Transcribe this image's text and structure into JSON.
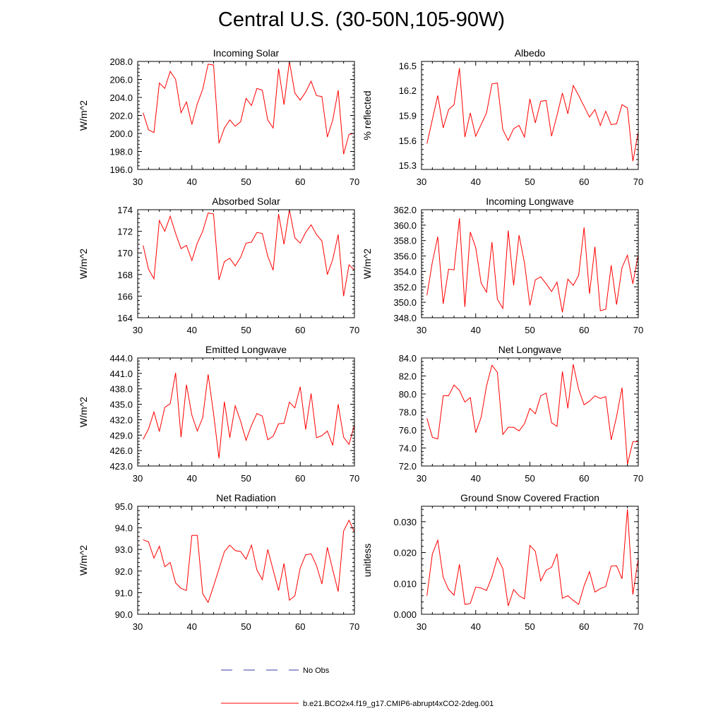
{
  "title": "Central U.S. (30-50N,105-90W)",
  "legend": {
    "items": [
      {
        "label": "No Obs",
        "color": "#3a3aa8",
        "dash": "dashed"
      },
      {
        "label": "b.e21.BCO2x4.f19_g17.CMIP6-abrupt4xCO2-2deg.001",
        "color": "#ff0000",
        "dash": "solid"
      }
    ]
  },
  "chart_data": [
    {
      "type": "line",
      "title": "Incoming Solar",
      "ylabel": "W/m^2",
      "xlim": [
        30,
        70
      ],
      "ylim": [
        196,
        208
      ],
      "xticks": [
        30,
        40,
        50,
        60,
        70
      ],
      "xtick_labels": [
        "30",
        "40",
        "50",
        "60",
        "70"
      ],
      "yticks": [
        196,
        198,
        200,
        202,
        204,
        206,
        208
      ],
      "ytick_labels": [
        "196.0",
        "198.0",
        "200.0",
        "202.0",
        "204.0",
        "206.0",
        "208.0"
      ],
      "series": [
        {
          "color": "#ff0000",
          "x": [
            31,
            32,
            33,
            34,
            35,
            36,
            37,
            38,
            39,
            40,
            41,
            42,
            43,
            44,
            45,
            46,
            47,
            48,
            49,
            50,
            51,
            52,
            53,
            54,
            55,
            56,
            57,
            58,
            59,
            60,
            61,
            62,
            63,
            64,
            65,
            66,
            67,
            68,
            69,
            70,
            71
          ],
          "y": [
            202.3,
            200.4,
            200.1,
            205.6,
            205.0,
            206.9,
            206.0,
            202.3,
            203.5,
            201.0,
            203.3,
            204.9,
            207.7,
            207.6,
            198.9,
            200.6,
            201.5,
            200.8,
            201.3,
            203.9,
            203.1,
            205.0,
            204.8,
            201.5,
            200.6,
            207.2,
            203.2,
            208.0,
            204.5,
            203.7,
            204.6,
            205.8,
            204.2,
            204.1,
            199.6,
            201.5,
            204.8,
            197.7,
            199.9,
            200.0,
            200.0
          ]
        }
      ]
    },
    {
      "type": "line",
      "title": "Albedo",
      "ylabel": "% reflected",
      "xlim": [
        30,
        70
      ],
      "ylim": [
        15.25,
        16.55
      ],
      "xticks": [
        30,
        40,
        50,
        60,
        70
      ],
      "xtick_labels": [
        "30",
        "40",
        "50",
        "60",
        "70"
      ],
      "yticks": [
        15.3,
        15.6,
        15.9,
        16.2,
        16.5
      ],
      "ytick_labels": [
        "15.3",
        "15.6",
        "15.9",
        "16.2",
        "16.5"
      ],
      "series": [
        {
          "color": "#ff0000",
          "x": [
            31,
            32,
            33,
            34,
            35,
            36,
            37,
            38,
            39,
            40,
            41,
            42,
            43,
            44,
            45,
            46,
            47,
            48,
            49,
            50,
            51,
            52,
            53,
            54,
            55,
            56,
            57,
            58,
            59,
            60,
            61,
            62,
            63,
            64,
            65,
            66,
            67,
            68,
            69,
            70,
            71
          ],
          "y": [
            15.56,
            15.85,
            16.14,
            15.75,
            15.97,
            16.03,
            16.47,
            15.64,
            15.93,
            15.65,
            15.79,
            15.93,
            16.28,
            16.29,
            15.73,
            15.6,
            15.74,
            15.78,
            15.64,
            16.1,
            15.81,
            16.07,
            16.08,
            15.65,
            15.9,
            16.17,
            15.92,
            16.26,
            16.14,
            16.01,
            15.88,
            15.97,
            15.78,
            15.95,
            15.79,
            15.8,
            16.03,
            15.99,
            15.35,
            15.7,
            15.6
          ]
        }
      ]
    },
    {
      "type": "line",
      "title": "Absorbed Solar",
      "ylabel": "W/m^2",
      "xlim": [
        30,
        70
      ],
      "ylim": [
        164,
        174
      ],
      "xticks": [
        30,
        40,
        50,
        60,
        70
      ],
      "xtick_labels": [
        "30",
        "40",
        "50",
        "60",
        "70"
      ],
      "yticks": [
        164,
        166,
        168,
        170,
        172,
        174
      ],
      "ytick_labels": [
        "164",
        "166",
        "168",
        "170",
        "172",
        "174"
      ],
      "series": [
        {
          "color": "#ff0000",
          "x": [
            31,
            32,
            33,
            34,
            35,
            36,
            37,
            38,
            39,
            40,
            41,
            42,
            43,
            44,
            45,
            46,
            47,
            48,
            49,
            50,
            51,
            52,
            53,
            54,
            55,
            56,
            57,
            58,
            59,
            60,
            61,
            62,
            63,
            64,
            65,
            66,
            67,
            68,
            69,
            70,
            71
          ],
          "y": [
            170.7,
            168.5,
            167.6,
            173.0,
            172.0,
            173.4,
            171.8,
            170.4,
            170.7,
            169.3,
            170.9,
            172.0,
            173.7,
            173.6,
            167.5,
            169.2,
            169.5,
            168.8,
            169.6,
            170.9,
            171.0,
            171.9,
            171.8,
            169.7,
            168.4,
            173.6,
            170.8,
            174.0,
            171.4,
            170.9,
            171.9,
            172.6,
            171.7,
            171.1,
            168.0,
            169.4,
            171.7,
            166.0,
            168.9,
            168.4,
            168.5
          ]
        }
      ]
    },
    {
      "type": "line",
      "title": "Incoming Longwave",
      "ylabel": "W/m^2",
      "xlim": [
        30,
        70
      ],
      "ylim": [
        348,
        362
      ],
      "xticks": [
        30,
        40,
        50,
        60,
        70
      ],
      "xtick_labels": [
        "30",
        "40",
        "50",
        "60",
        "70"
      ],
      "yticks": [
        348,
        350,
        352,
        354,
        356,
        358,
        360,
        362
      ],
      "ytick_labels": [
        "348.0",
        "350.0",
        "352.0",
        "354.0",
        "356.0",
        "358.0",
        "360.0",
        "362.0"
      ],
      "series": [
        {
          "color": "#ff0000",
          "x": [
            31,
            32,
            33,
            34,
            35,
            36,
            37,
            38,
            39,
            40,
            41,
            42,
            43,
            44,
            45,
            46,
            47,
            48,
            49,
            50,
            51,
            52,
            53,
            54,
            55,
            56,
            57,
            58,
            59,
            60,
            61,
            62,
            63,
            64,
            65,
            66,
            67,
            68,
            69,
            70,
            71
          ],
          "y": [
            350.9,
            355.2,
            358.5,
            349.8,
            354.3,
            354.2,
            360.9,
            349.4,
            359.1,
            357.1,
            352.5,
            351.3,
            357.8,
            350.4,
            349.2,
            359.3,
            352.2,
            358.7,
            355.1,
            349.6,
            352.9,
            353.3,
            352.4,
            351.4,
            352.6,
            348.7,
            353.0,
            352.2,
            353.5,
            359.7,
            351.1,
            357.2,
            348.9,
            349.1,
            354.8,
            349.7,
            354.5,
            356.1,
            352.4,
            356.2,
            356.0
          ]
        }
      ]
    },
    {
      "type": "line",
      "title": "Emitted Longwave",
      "ylabel": "W/m^2",
      "xlim": [
        30,
        70
      ],
      "ylim": [
        423,
        444
      ],
      "xticks": [
        30,
        40,
        50,
        60,
        70
      ],
      "xtick_labels": [
        "30",
        "40",
        "50",
        "60",
        "70"
      ],
      "yticks": [
        423,
        426,
        429,
        432,
        435,
        438,
        441,
        444
      ],
      "ytick_labels": [
        "423.0",
        "426.0",
        "429.0",
        "432.0",
        "435.0",
        "438.0",
        "441.0",
        "444.0"
      ],
      "series": [
        {
          "color": "#ff0000",
          "x": [
            31,
            32,
            33,
            34,
            35,
            36,
            37,
            38,
            39,
            40,
            41,
            42,
            43,
            44,
            45,
            46,
            47,
            48,
            49,
            50,
            51,
            52,
            53,
            54,
            55,
            56,
            57,
            58,
            59,
            60,
            61,
            62,
            63,
            64,
            65,
            66,
            67,
            68,
            69,
            70,
            71
          ],
          "y": [
            428.2,
            430.2,
            433.5,
            429.7,
            434.4,
            435.1,
            441.1,
            428.6,
            438.8,
            432.9,
            429.8,
            432.4,
            440.8,
            433.2,
            424.5,
            435.5,
            428.5,
            434.7,
            431.7,
            428.0,
            430.9,
            433.2,
            432.7,
            428.1,
            428.8,
            431.2,
            431.3,
            435.4,
            434.3,
            438.4,
            430.1,
            437.1,
            428.5,
            428.9,
            429.8,
            427.0,
            435.0,
            428.6,
            427.2,
            431.0,
            430.8
          ]
        }
      ]
    },
    {
      "type": "line",
      "title": "Net Longwave",
      "ylabel": "",
      "xlim": [
        30,
        70
      ],
      "ylim": [
        72,
        84
      ],
      "xticks": [
        30,
        40,
        50,
        60,
        70
      ],
      "xtick_labels": [
        "30",
        "40",
        "50",
        "60",
        "70"
      ],
      "yticks": [
        72,
        74,
        76,
        78,
        80,
        82,
        84
      ],
      "ytick_labels": [
        "72.0",
        "74.0",
        "76.0",
        "78.0",
        "80.0",
        "82.0",
        "84.0"
      ],
      "series": [
        {
          "color": "#ff0000",
          "x": [
            31,
            32,
            33,
            34,
            35,
            36,
            37,
            38,
            39,
            40,
            41,
            42,
            43,
            44,
            45,
            46,
            47,
            48,
            49,
            50,
            51,
            52,
            53,
            54,
            55,
            56,
            57,
            58,
            59,
            60,
            61,
            62,
            63,
            64,
            65,
            66,
            67,
            68,
            69,
            70,
            71
          ],
          "y": [
            77.3,
            75.2,
            75.0,
            79.8,
            79.8,
            81.0,
            80.4,
            79.1,
            79.6,
            75.7,
            77.4,
            80.9,
            83.2,
            82.4,
            75.5,
            76.3,
            76.3,
            75.9,
            76.7,
            78.4,
            77.8,
            79.8,
            80.1,
            76.8,
            76.4,
            82.5,
            78.4,
            83.3,
            80.5,
            78.8,
            79.2,
            79.8,
            79.5,
            79.7,
            74.9,
            77.5,
            80.7,
            72.2,
            74.7,
            74.7,
            74.8
          ]
        }
      ]
    },
    {
      "type": "line",
      "title": "Net Radiation",
      "ylabel": "W/m^2",
      "xlim": [
        30,
        70
      ],
      "ylim": [
        90,
        95
      ],
      "xticks": [
        30,
        40,
        50,
        60,
        70
      ],
      "xtick_labels": [
        "30",
        "40",
        "50",
        "60",
        "70"
      ],
      "yticks": [
        90,
        91,
        92,
        93,
        94,
        95
      ],
      "ytick_labels": [
        "90.0",
        "91.0",
        "92.0",
        "93.0",
        "94.0",
        "95.0"
      ],
      "series": [
        {
          "color": "#ff0000",
          "x": [
            31,
            32,
            33,
            34,
            35,
            36,
            37,
            38,
            39,
            40,
            41,
            42,
            43,
            44,
            45,
            46,
            47,
            48,
            49,
            50,
            51,
            52,
            53,
            54,
            55,
            56,
            57,
            58,
            59,
            60,
            61,
            62,
            63,
            64,
            65,
            66,
            67,
            68,
            69,
            70,
            71
          ],
          "y": [
            93.45,
            93.35,
            92.6,
            93.15,
            92.2,
            92.4,
            91.45,
            91.2,
            91.1,
            93.65,
            93.65,
            90.95,
            90.55,
            91.3,
            92.1,
            92.9,
            93.2,
            92.95,
            92.9,
            92.55,
            93.2,
            92.05,
            91.6,
            93.0,
            92.05,
            91.1,
            92.35,
            90.65,
            90.85,
            92.15,
            92.75,
            92.8,
            92.25,
            91.4,
            93.1,
            92.05,
            91.05,
            93.85,
            94.35,
            93.8,
            93.5
          ]
        }
      ]
    },
    {
      "type": "line",
      "title": "Ground Snow Covered Fraction",
      "ylabel": "unitless",
      "xlim": [
        30,
        70
      ],
      "ylim": [
        0,
        0.035
      ],
      "xticks": [
        30,
        40,
        50,
        60,
        70
      ],
      "xtick_labels": [
        "30",
        "40",
        "50",
        "60",
        "70"
      ],
      "yticks": [
        0,
        0.01,
        0.02,
        0.03
      ],
      "ytick_labels": [
        "0.000",
        "0.010",
        "0.020",
        "0.030"
      ],
      "series": [
        {
          "color": "#ff0000",
          "x": [
            31,
            32,
            33,
            34,
            35,
            36,
            37,
            38,
            39,
            40,
            41,
            42,
            43,
            44,
            45,
            46,
            47,
            48,
            49,
            50,
            51,
            52,
            53,
            54,
            55,
            56,
            57,
            58,
            59,
            60,
            61,
            62,
            63,
            64,
            65,
            66,
            67,
            68,
            69,
            70,
            71
          ],
          "y": [
            0.006,
            0.0195,
            0.024,
            0.012,
            0.008,
            0.0062,
            0.0162,
            0.0032,
            0.0035,
            0.0088,
            0.0085,
            0.0077,
            0.0122,
            0.0183,
            0.0148,
            0.0027,
            0.008,
            0.006,
            0.005,
            0.0223,
            0.0204,
            0.0108,
            0.0143,
            0.0152,
            0.0196,
            0.0052,
            0.006,
            0.0045,
            0.0032,
            0.0092,
            0.0138,
            0.0072,
            0.0083,
            0.009,
            0.0156,
            0.0157,
            0.0115,
            0.034,
            0.0064,
            0.018,
            0.0175
          ]
        }
      ]
    }
  ]
}
